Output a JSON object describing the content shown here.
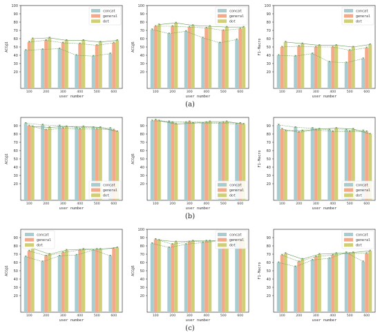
{
  "row_labels": [
    "(a)",
    "(b)",
    "(c)"
  ],
  "legend_position": [
    "top-right",
    "bottom-right",
    "top-left"
  ],
  "colors": {
    "concat": "#a8cdd0",
    "general": "#f4a988",
    "dot": "#cfcf77",
    "line": "#6a9a5a"
  },
  "chart_data": [
    {
      "type": "bar",
      "categories": [
        "100",
        "200",
        "300",
        "400",
        "500",
        "600"
      ],
      "xlabel": "user number",
      "ylabel": "ACC@1",
      "yticks": [
        20,
        30,
        40,
        50,
        60,
        70,
        80,
        90,
        100
      ],
      "ylim": [
        0,
        100
      ],
      "legend": "top-right",
      "series": [
        {
          "name": "concat",
          "values": [
            46,
            47,
            48,
            40,
            39,
            42
          ]
        },
        {
          "name": "general",
          "values": [
            56,
            58,
            55,
            54,
            52,
            55
          ]
        },
        {
          "name": "dot",
          "values": [
            60,
            61,
            58,
            58,
            56,
            58
          ]
        }
      ]
    },
    {
      "type": "bar",
      "categories": [
        "100",
        "200",
        "300",
        "400",
        "500",
        "600"
      ],
      "xlabel": "user number",
      "ylabel": "ACC@5",
      "yticks": [
        20,
        30,
        40,
        50,
        60,
        70,
        80,
        90,
        100
      ],
      "ylim": [
        0,
        100
      ],
      "legend": "top-right",
      "series": [
        {
          "name": "concat",
          "values": [
            71,
            66,
            69,
            61,
            55,
            59
          ]
        },
        {
          "name": "general",
          "values": [
            75,
            75,
            74,
            73,
            70,
            72
          ]
        },
        {
          "name": "dot",
          "values": [
            77,
            79,
            76,
            75,
            74,
            74
          ]
        }
      ]
    },
    {
      "type": "bar",
      "categories": [
        "100",
        "200",
        "300",
        "400",
        "500",
        "600"
      ],
      "xlabel": "user number",
      "ylabel": "F1-Macro",
      "yticks": [
        20,
        30,
        40,
        50,
        60,
        70,
        80,
        90,
        100
      ],
      "ylim": [
        0,
        100
      ],
      "legend": "top-right",
      "series": [
        {
          "name": "concat",
          "values": [
            40,
            39,
            42,
            32,
            31,
            36
          ]
        },
        {
          "name": "general",
          "values": [
            50,
            51,
            50,
            50,
            46,
            49
          ]
        },
        {
          "name": "dot",
          "values": [
            56,
            54,
            52,
            52,
            50,
            53
          ]
        }
      ]
    },
    {
      "type": "bar",
      "categories": [
        "100",
        "200",
        "300",
        "400",
        "500",
        "600"
      ],
      "xlabel": "user number",
      "ylabel": "ACC@1",
      "yticks": [
        20,
        30,
        40,
        50,
        60,
        70,
        80,
        90
      ],
      "ylim": [
        0,
        100
      ],
      "legend": "bottom-right",
      "series": [
        {
          "name": "concat",
          "values": [
            93,
            91,
            90,
            88,
            88,
            87
          ]
        },
        {
          "name": "general",
          "values": [
            90,
            85,
            87,
            86,
            86,
            85
          ]
        },
        {
          "name": "dot",
          "values": [
            89,
            88,
            89,
            89,
            88,
            83
          ]
        }
      ]
    },
    {
      "type": "bar",
      "categories": [
        "100",
        "200",
        "300",
        "400",
        "500",
        "600"
      ],
      "xlabel": "user number",
      "ylabel": "ACC@5",
      "yticks": [
        20,
        30,
        40,
        50,
        60,
        70,
        80,
        90
      ],
      "ylim": [
        0,
        100
      ],
      "legend": "bottom-right",
      "series": [
        {
          "name": "concat",
          "values": [
            96,
            95,
            94,
            93,
            93,
            92
          ]
        },
        {
          "name": "general",
          "values": [
            97,
            94,
            95,
            94,
            94,
            93
          ]
        },
        {
          "name": "dot",
          "values": [
            96,
            92,
            93,
            95,
            95,
            92
          ]
        }
      ]
    },
    {
      "type": "bar",
      "categories": [
        "100",
        "200",
        "300",
        "400",
        "500",
        "600"
      ],
      "xlabel": "user number",
      "ylabel": "F1-Macro",
      "yticks": [
        20,
        30,
        40,
        50,
        60,
        70,
        80,
        90
      ],
      "ylim": [
        0,
        100
      ],
      "legend": "bottom-right",
      "series": [
        {
          "name": "concat",
          "values": [
            91,
            88,
            87,
            85,
            85,
            84
          ]
        },
        {
          "name": "general",
          "values": [
            86,
            82,
            85,
            83,
            83,
            83
          ]
        },
        {
          "name": "dot",
          "values": [
            84,
            84,
            86,
            87,
            86,
            80
          ]
        }
      ]
    },
    {
      "type": "bar",
      "categories": [
        "100",
        "200",
        "300",
        "400",
        "500",
        "600"
      ],
      "xlabel": "user number",
      "ylabel": "ACC@1",
      "yticks": [
        20,
        30,
        40,
        50,
        60,
        70,
        80,
        90
      ],
      "ylim": [
        0,
        100
      ],
      "legend": "top-left",
      "series": [
        {
          "name": "concat",
          "values": [
            67,
            61,
            68,
            69,
            75,
            68
          ]
        },
        {
          "name": "general",
          "values": [
            74,
            68,
            72,
            75,
            76,
            77
          ]
        },
        {
          "name": "dot",
          "values": [
            77,
            70,
            75,
            76,
            76,
            78
          ]
        }
      ]
    },
    {
      "type": "bar",
      "categories": [
        "100",
        "200",
        "300",
        "400",
        "500",
        "600"
      ],
      "xlabel": "user number",
      "ylabel": "ACC@5",
      "yticks": [
        20,
        30,
        40,
        50,
        60,
        70,
        80,
        90,
        100
      ],
      "ylim": [
        0,
        100
      ],
      "legend": "top-right",
      "series": [
        {
          "name": "concat",
          "values": [
            83,
            78,
            82,
            84,
            86,
            84
          ]
        },
        {
          "name": "general",
          "values": [
            88,
            82,
            85,
            86,
            86,
            88
          ]
        },
        {
          "name": "dot",
          "values": [
            87,
            85,
            86,
            86,
            87,
            89
          ]
        }
      ]
    },
    {
      "type": "bar",
      "categories": [
        "100",
        "200",
        "300",
        "400",
        "500",
        "600"
      ],
      "xlabel": "user number",
      "ylabel": "F1-Macro",
      "yticks": [
        20,
        30,
        40,
        50,
        60,
        70,
        80,
        90
      ],
      "ylim": [
        0,
        100
      ],
      "legend": "top-right",
      "series": [
        {
          "name": "concat",
          "values": [
            60,
            55,
            63,
            65,
            72,
            61
          ]
        },
        {
          "name": "general",
          "values": [
            69,
            61,
            67,
            69,
            71,
            71
          ]
        },
        {
          "name": "dot",
          "values": [
            71,
            64,
            70,
            71,
            72,
            74
          ]
        }
      ]
    }
  ]
}
